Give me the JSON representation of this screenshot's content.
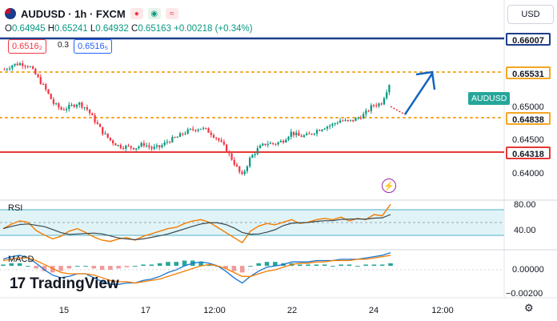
{
  "header": {
    "symbol": "AUDUSD · 1h · FXCM",
    "open_label": "O",
    "open": "0.64945",
    "high_label": "H",
    "high": "0.65241",
    "low_label": "L",
    "low": "0.64932",
    "close_label": "C",
    "close": "0.65163",
    "change": "+0.00218 (+0.34%)",
    "sell_price": "0.6516₂",
    "spread": "0.3",
    "buy_price": "0.6516₅",
    "currency": "USD"
  },
  "colors": {
    "up": "#089981",
    "down": "#f23645",
    "resistance_blue": "#1e3f8a",
    "dotted_yellow": "#f5a623",
    "support_red": "#e53935",
    "projection": "#1565c0",
    "rsi_line": "#f57c00",
    "rsi_ma": "#37474f",
    "macd_line": "#1976d2",
    "signal_line": "#f57c00"
  },
  "price_tags": {
    "level1": "0.66007",
    "level2": "0.65531",
    "level3": "0.64838",
    "level4": "0.64318",
    "current_symbol": "AUDUSD"
  },
  "price_axis": [
    "0.65000",
    "0.64500",
    "0.64000"
  ],
  "rsi": {
    "label": "RSI",
    "ticks": [
      "80.00",
      "40.00"
    ]
  },
  "macd": {
    "label": "MACD",
    "ticks": [
      "0.00000",
      "−0.00200"
    ]
  },
  "time_axis": [
    "15",
    "17",
    "12:00",
    "22",
    "24",
    "12:00"
  ],
  "logo": {
    "mark": "17",
    "text": "TradingView"
  },
  "chart_data": {
    "type": "candlestick",
    "title": "AUDUSD · 1h · FXCM",
    "ylim": [
      0.6365,
      0.6618
    ],
    "x": [
      "15",
      "17",
      "12:00",
      "22",
      "24",
      "12:00"
    ],
    "levels": [
      {
        "name": "resistance",
        "value": 0.66007,
        "style": "solid",
        "color": "#1e3f8a"
      },
      {
        "name": "target",
        "value": 0.65531,
        "style": "dotted",
        "color": "#f5a623"
      },
      {
        "name": "support_dotted",
        "value": 0.64838,
        "style": "dotted",
        "color": "#f5a623"
      },
      {
        "name": "support",
        "value": 0.64318,
        "style": "solid",
        "color": "#e53935"
      }
    ],
    "close_path": [
      0.6535,
      0.6541,
      0.6543,
      0.654,
      0.6525,
      0.6509,
      0.649,
      0.6482,
      0.6486,
      0.6491,
      0.6484,
      0.6468,
      0.6452,
      0.6441,
      0.6434,
      0.6433,
      0.6432,
      0.6437,
      0.6431,
      0.6433,
      0.6441,
      0.6445,
      0.6452,
      0.6456,
      0.6458,
      0.6453,
      0.6444,
      0.6431,
      0.6413,
      0.6394,
      0.6418,
      0.6431,
      0.6438,
      0.6437,
      0.6441,
      0.6452,
      0.6447,
      0.6448,
      0.6454,
      0.6459,
      0.6462,
      0.6468,
      0.6466,
      0.647,
      0.6476,
      0.6488,
      0.649,
      0.6516
    ],
    "rsi_ylim": [
      20,
      90
    ],
    "rsi_bands": [
      70,
      30
    ],
    "rsi_values": [
      48,
      55,
      60,
      58,
      45,
      38,
      32,
      36,
      44,
      48,
      42,
      35,
      30,
      28,
      32,
      34,
      30,
      36,
      40,
      44,
      48,
      50,
      56,
      60,
      62,
      58,
      50,
      42,
      34,
      26,
      44,
      52,
      56,
      54,
      58,
      62,
      56,
      58,
      62,
      64,
      62,
      66,
      60,
      64,
      62,
      70,
      68,
      86
    ],
    "macd_ylim": [
      -0.0023,
      0.0011
    ],
    "macd_values": [
      0.0005,
      0.0007,
      0.0008,
      0.0006,
      0.0002,
      -0.0003,
      -0.0007,
      -0.0009,
      -0.0008,
      -0.0006,
      -0.0006,
      -0.0009,
      -0.0012,
      -0.0014,
      -0.0014,
      -0.0013,
      -0.0013,
      -0.0011,
      -0.001,
      -0.0008,
      -0.0005,
      -0.0003,
      0.0,
      0.0002,
      0.0003,
      0.0002,
      0.0,
      -0.0004,
      -0.0009,
      -0.0013,
      -0.0008,
      -0.0004,
      -0.0001,
      0.0,
      0.0001,
      0.0003,
      0.0003,
      0.0003,
      0.0004,
      0.0004,
      0.0004,
      0.0005,
      0.0005,
      0.0005,
      0.0006,
      0.0007,
      0.0008,
      0.001
    ],
    "signal_values": [
      0.0004,
      0.0005,
      0.0006,
      0.0006,
      0.0004,
      0.0001,
      -0.0002,
      -0.0005,
      -0.0006,
      -0.0006,
      -0.0006,
      -0.0007,
      -0.0009,
      -0.0011,
      -0.0012,
      -0.0012,
      -0.0013,
      -0.0012,
      -0.0011,
      -0.001,
      -0.0008,
      -0.0006,
      -0.0004,
      -0.0002,
      0.0,
      0.0001,
      0.0,
      -0.0002,
      -0.0005,
      -0.0008,
      -0.0008,
      -0.0006,
      -0.0004,
      -0.0003,
      -0.0001,
      0.0001,
      0.0002,
      0.0002,
      0.0003,
      0.0003,
      0.0004,
      0.0004,
      0.0004,
      0.0005,
      0.0005,
      0.0006,
      0.0007,
      0.0008
    ]
  }
}
